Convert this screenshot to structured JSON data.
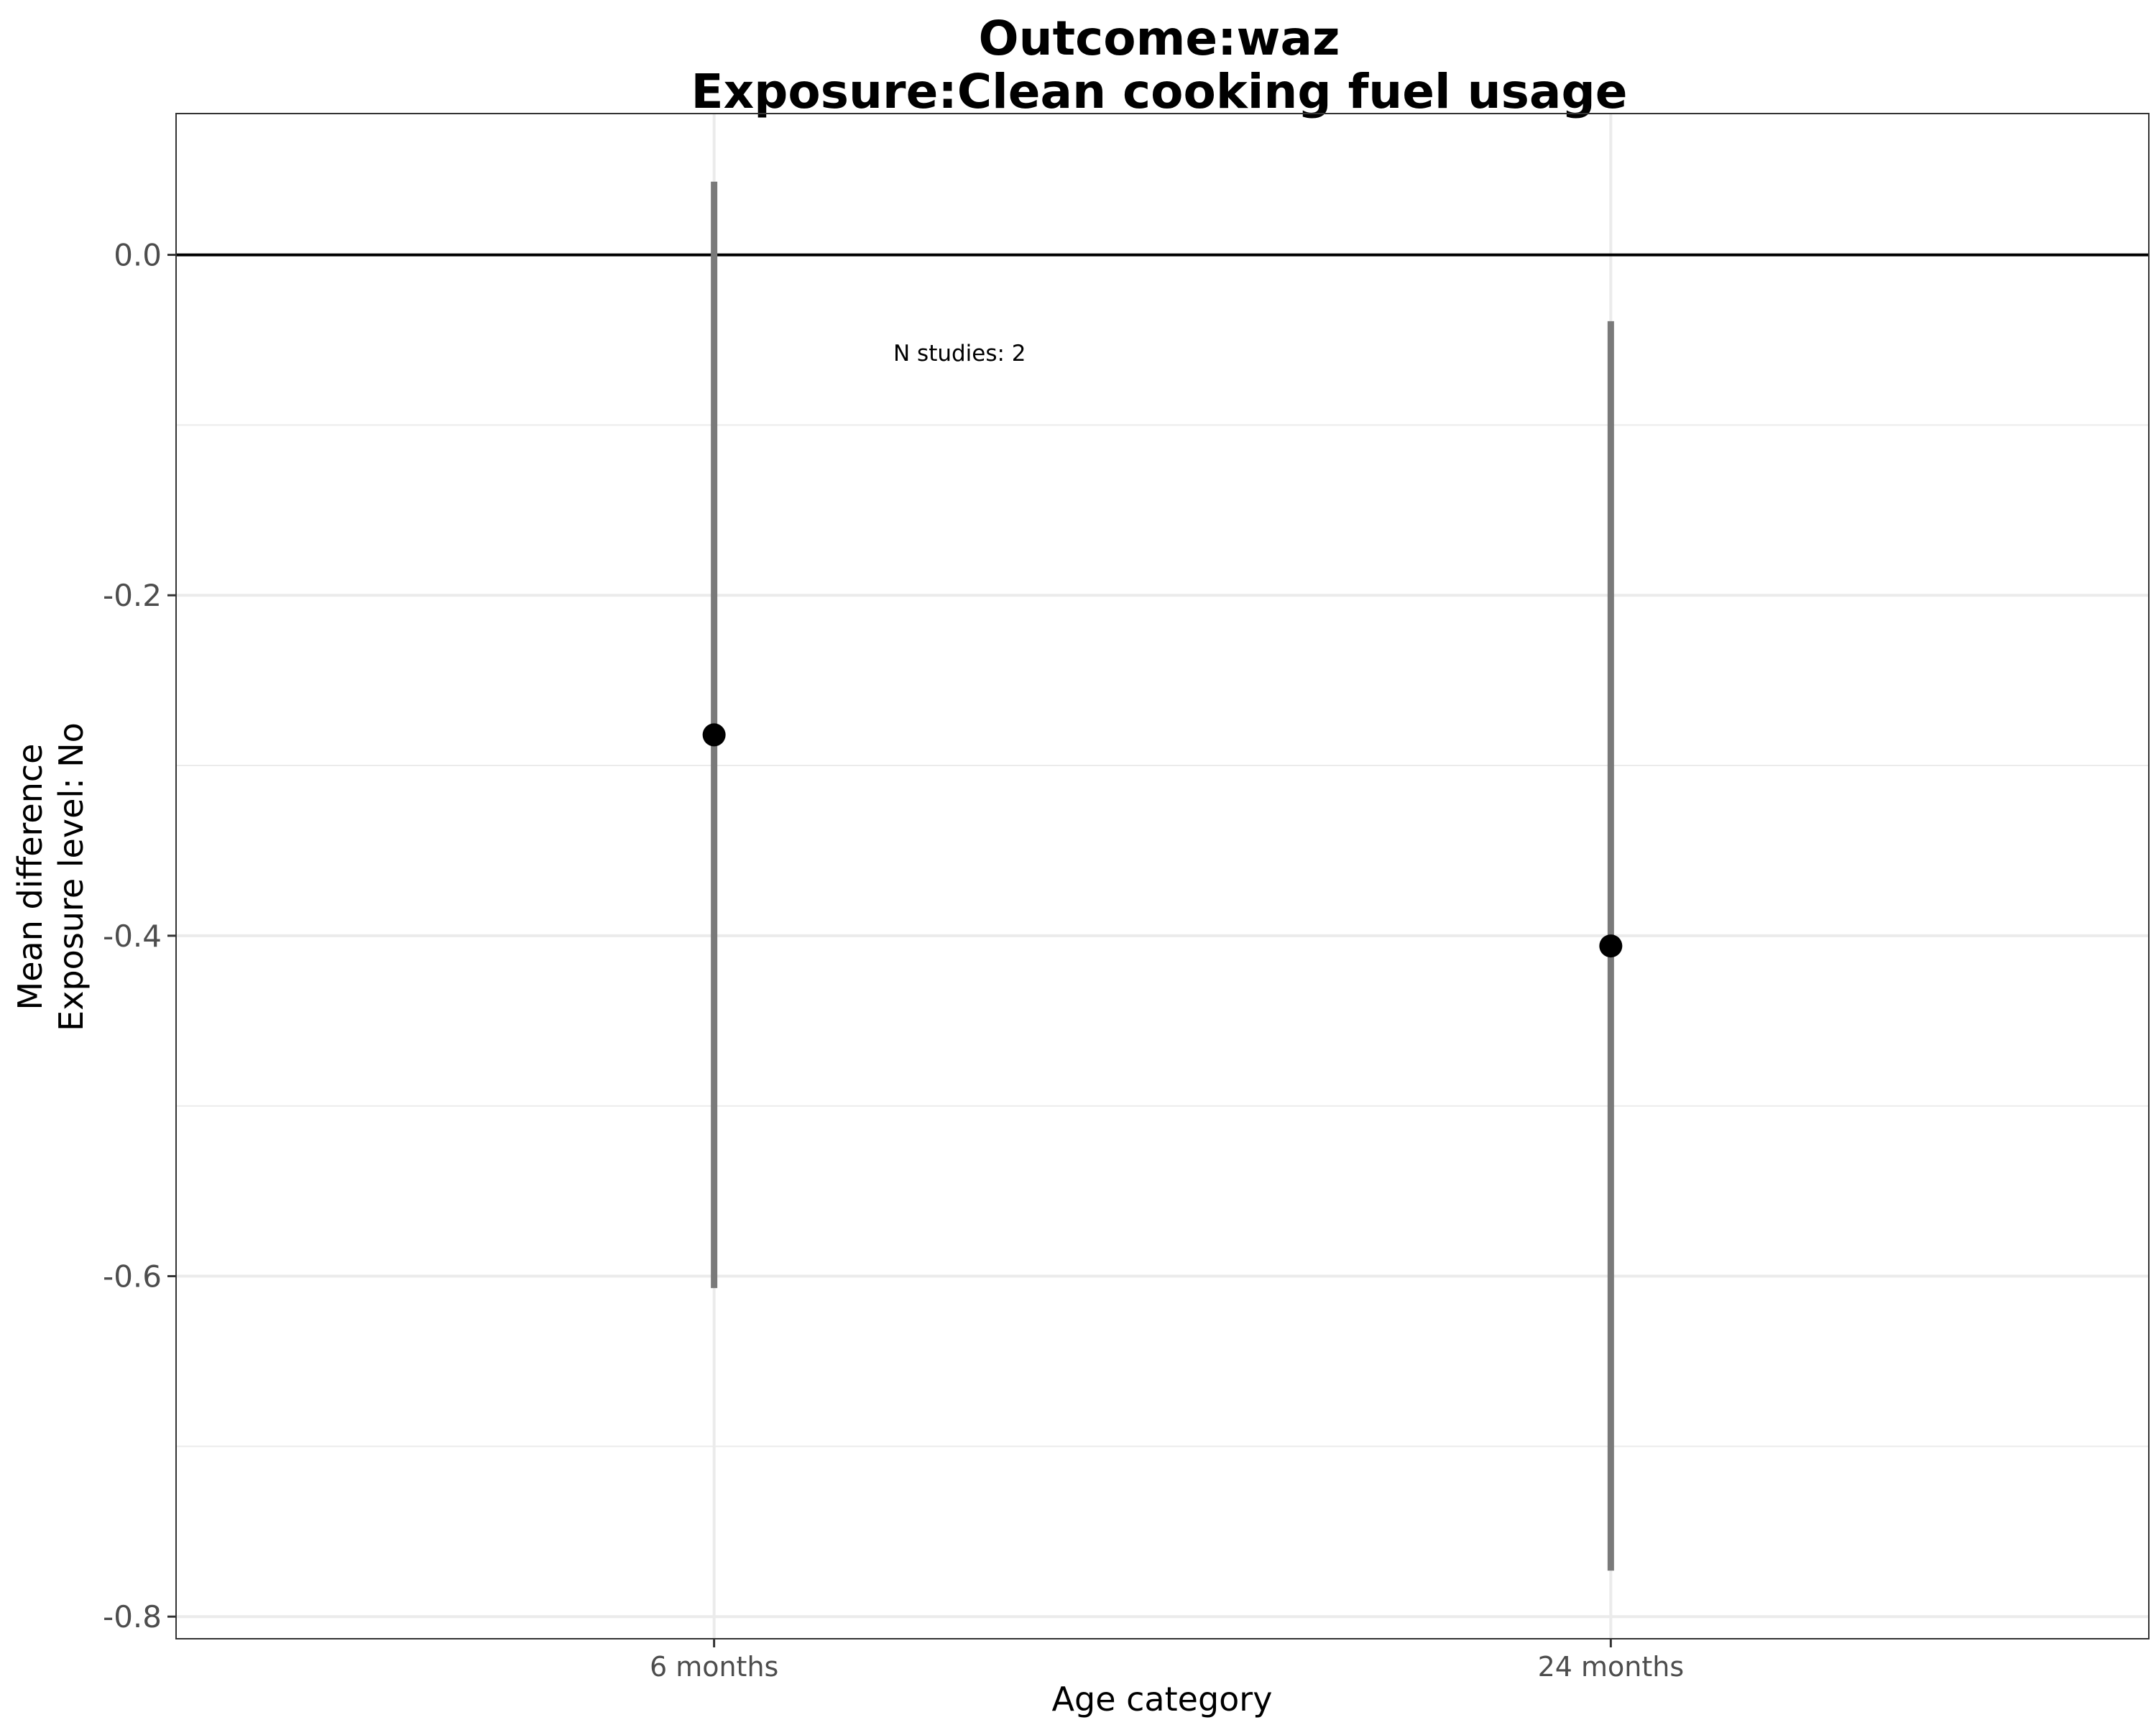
{
  "chart_data": {
    "type": "scatter",
    "title_lines": [
      "Outcome:waz",
      "Exposure:Clean cooking fuel usage"
    ],
    "xlabel": "Age category",
    "ylabel_lines": [
      "Mean difference",
      "Exposure level: No"
    ],
    "categories": [
      "6 months",
      "24 months"
    ],
    "points": [
      {
        "category": "6 months",
        "estimate": -0.282,
        "ci_lower": -0.607,
        "ci_upper": 0.043
      },
      {
        "category": "24 months",
        "estimate": -0.406,
        "ci_lower": -0.773,
        "ci_upper": -0.039
      }
    ],
    "reference_line_y": 0.0,
    "ylim": [
      -0.813,
      0.083
    ],
    "y_ticks": [
      0.0,
      -0.2,
      -0.4,
      -0.6,
      -0.8
    ],
    "y_tick_labels": [
      "0.0",
      "-0.2",
      "-0.4",
      "-0.6",
      "-0.8"
    ],
    "y_minor_gridlines": [
      -0.1,
      -0.3,
      -0.5,
      -0.7
    ],
    "grid": true,
    "annotation": "N studies: 2",
    "colors": {
      "point": "#000000",
      "errorbar": "#7a7a7a",
      "grid": "#ebebeb",
      "panel_border": "#333333",
      "reference_line": "#000000"
    }
  }
}
